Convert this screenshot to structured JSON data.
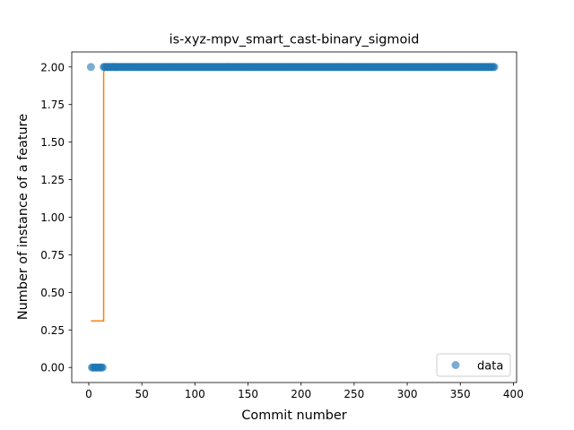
{
  "chart_data": {
    "type": "scatter",
    "title": "is-xyz-mpv_smart_cast-binary_sigmoid",
    "xlabel": "Commit number",
    "ylabel": "Number of instance of a feature",
    "xlim": [
      -16.05,
      403.05
    ],
    "ylim": [
      -0.1,
      2.1
    ],
    "xticks": [
      0,
      50,
      100,
      150,
      200,
      250,
      300,
      350,
      400
    ],
    "xtick_labels": [
      "0",
      "50",
      "100",
      "150",
      "200",
      "250",
      "300",
      "350",
      "400"
    ],
    "yticks": [
      0.0,
      0.25,
      0.5,
      0.75,
      1.0,
      1.25,
      1.5,
      1.75,
      2.0
    ],
    "ytick_labels": [
      "0.00",
      "0.25",
      "0.50",
      "0.75",
      "1.00",
      "1.25",
      "1.50",
      "1.75",
      "2.00"
    ],
    "legend": {
      "position": "lower right",
      "entries": [
        "data"
      ]
    },
    "grid": false,
    "series": [
      {
        "name": "data",
        "kind": "scatter",
        "color": "#1f77b4",
        "points": [
          {
            "x": 2,
            "y": 2
          },
          {
            "x": 3,
            "y": 0
          },
          {
            "x": 4,
            "y": 0
          },
          {
            "x": 5,
            "y": 0
          },
          {
            "x": 6,
            "y": 0
          },
          {
            "x": 7,
            "y": 0
          },
          {
            "x": 8,
            "y": 0
          },
          {
            "x": 9,
            "y": 0
          },
          {
            "x": 10,
            "y": 0
          },
          {
            "x": 11,
            "y": 0
          },
          {
            "x": 12,
            "y": 0
          },
          {
            "x": 13,
            "y": 0
          },
          {
            "x": 14,
            "y": 2
          },
          {
            "x": 15,
            "y": 2
          },
          {
            "x": 16,
            "y": 2
          }
        ],
        "constant_run": {
          "x_start": 17,
          "x_end": 382,
          "y": 2
        }
      },
      {
        "kind": "line",
        "color": "#ff7f0e",
        "x": [
          2,
          14,
          14,
          15,
          382
        ],
        "y": [
          0.31,
          0.31,
          1.96,
          2.0,
          2.0
        ]
      }
    ]
  }
}
